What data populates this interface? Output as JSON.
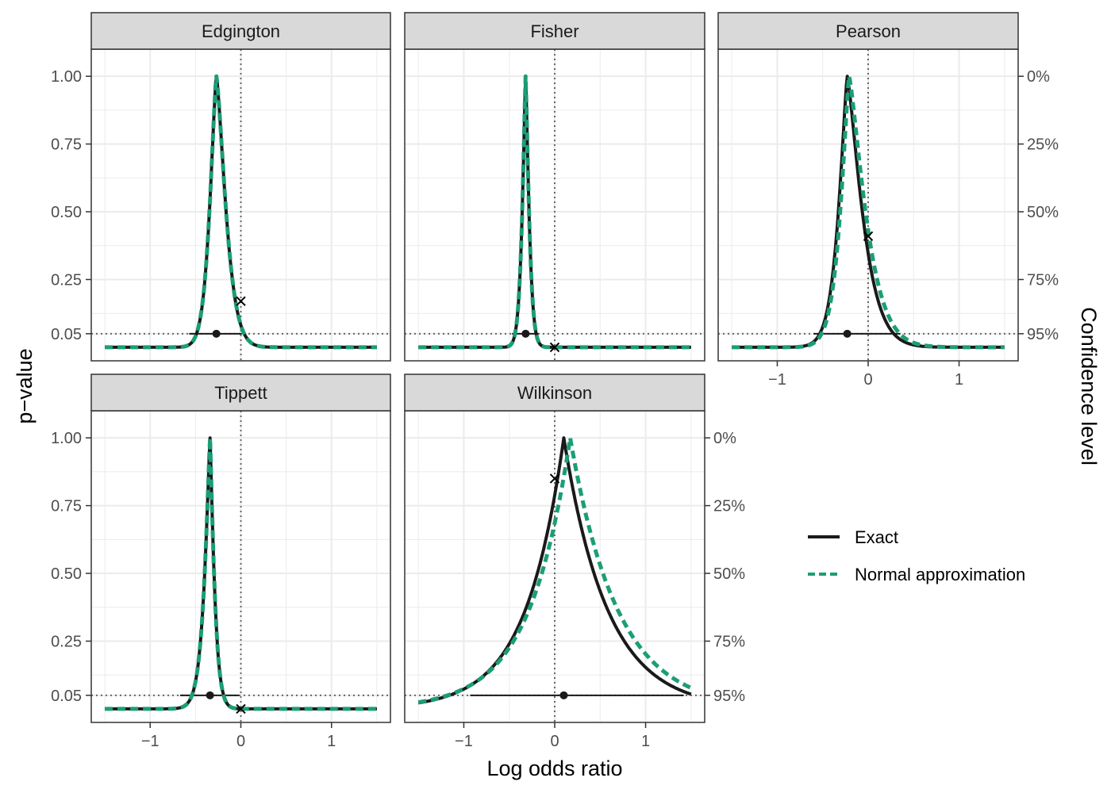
{
  "colors": {
    "exact": "#1a1a1a",
    "approx": "#1b9e77",
    "grid": "#ebebeb",
    "strip": "#d9d9d9",
    "ref": "#666666"
  },
  "chart_data": {
    "type": "line",
    "xlabel": "Log odds ratio",
    "ylabel": "p−value",
    "y2label": "Confidence level",
    "xlim": [
      -1.65,
      1.65
    ],
    "ylim": [
      -0.05,
      1.1
    ],
    "x_ticks": [
      -1,
      0,
      1
    ],
    "x_tick_labels": [
      "−1",
      "0",
      "1"
    ],
    "y_ticks": [
      1.0,
      0.75,
      0.5,
      0.25,
      0.05
    ],
    "y_tick_labels": [
      "1.00",
      "0.75",
      "0.50",
      "0.25",
      "0.05"
    ],
    "y2_tick_labels": [
      "0%",
      "25%",
      "50%",
      "75%",
      "95%"
    ],
    "ref_hline": 0.05,
    "ref_vline": 0,
    "legend": {
      "position": "right",
      "entries": [
        "Exact",
        "Normal approximation"
      ]
    },
    "panels": [
      {
        "name": "Edgington",
        "peak": -0.27,
        "ci": [
          -0.57,
          0.01
        ],
        "null_p": 0.17,
        "series": [
          {
            "name": "Exact",
            "peak": -0.27,
            "wl": 0.1,
            "wr": 0.14,
            "shape": 1.4
          },
          {
            "name": "Normal approximation",
            "peak": -0.27,
            "wl": 0.1,
            "wr": 0.14,
            "shape": 1.4
          }
        ]
      },
      {
        "name": "Fisher",
        "peak": -0.32,
        "ci": [
          -0.47,
          -0.18
        ],
        "null_p": 0.0,
        "series": [
          {
            "name": "Exact",
            "peak": -0.32,
            "wl": 0.05,
            "wr": 0.05,
            "shape": 1.3
          },
          {
            "name": "Normal approximation",
            "peak": -0.32,
            "wl": 0.05,
            "wr": 0.05,
            "shape": 1.3
          }
        ]
      },
      {
        "name": "Pearson",
        "peak": -0.23,
        "ci": [
          -0.6,
          0.35
        ],
        "null_p": 0.41,
        "series": [
          {
            "name": "Exact",
            "peak": -0.23,
            "wl": 0.13,
            "wr": 0.22,
            "shape": 1.3
          },
          {
            "name": "Normal approximation",
            "peak": -0.21,
            "wl": 0.13,
            "wr": 0.24,
            "shape": 1.3
          }
        ]
      },
      {
        "name": "Tippett",
        "peak": -0.34,
        "ci": [
          -0.67,
          -0.02
        ],
        "null_p": 0.0,
        "series": [
          {
            "name": "Exact",
            "peak": -0.34,
            "wl": 0.08,
            "wr": 0.06,
            "shape": 1.2
          },
          {
            "name": "Normal approximation",
            "peak": -0.34,
            "wl": 0.08,
            "wr": 0.06,
            "shape": 1.2
          }
        ]
      },
      {
        "name": "Wilkinson",
        "peak": 0.1,
        "ci": [
          -0.93,
          1.42
        ],
        "null_p": 0.85,
        "series": [
          {
            "name": "Exact",
            "peak": 0.1,
            "wl": 0.42,
            "wr": 0.48,
            "shape": 1.0
          },
          {
            "name": "Normal approximation",
            "peak": 0.17,
            "wl": 0.45,
            "wr": 0.52,
            "shape": 1.0
          }
        ]
      }
    ]
  }
}
